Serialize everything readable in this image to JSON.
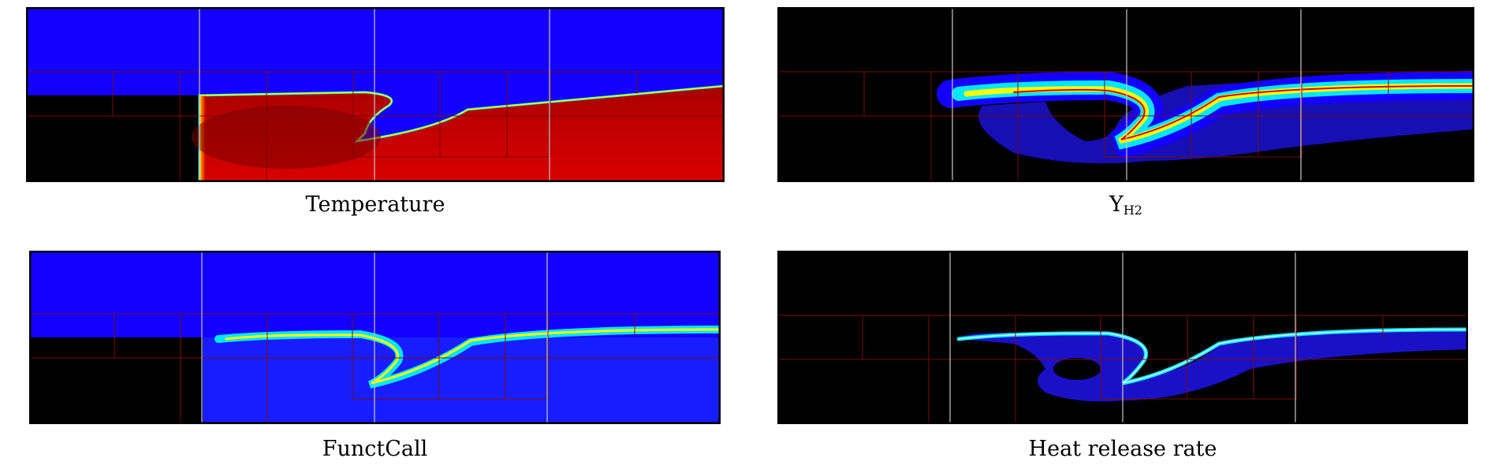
{
  "panels": [
    {
      "id": "temperature",
      "caption": "Temperature",
      "caption_sub": ""
    },
    {
      "id": "yh2",
      "caption": "Y",
      "caption_sub": "H2"
    },
    {
      "id": "functcall",
      "caption": "FunctCall",
      "caption_sub": ""
    },
    {
      "id": "heat",
      "caption": "Heat release rate",
      "caption_sub": ""
    }
  ],
  "colors": {
    "frame": "#000000",
    "background_black": "#000000",
    "jet_low": "#1400ff",
    "jet_mid": "#00e6ff",
    "jet_high_yellow": "#ffff00",
    "jet_high_red": "#d40000",
    "grid_coarse": "#c8c8c8",
    "grid_fine": "#7a0a0a"
  }
}
